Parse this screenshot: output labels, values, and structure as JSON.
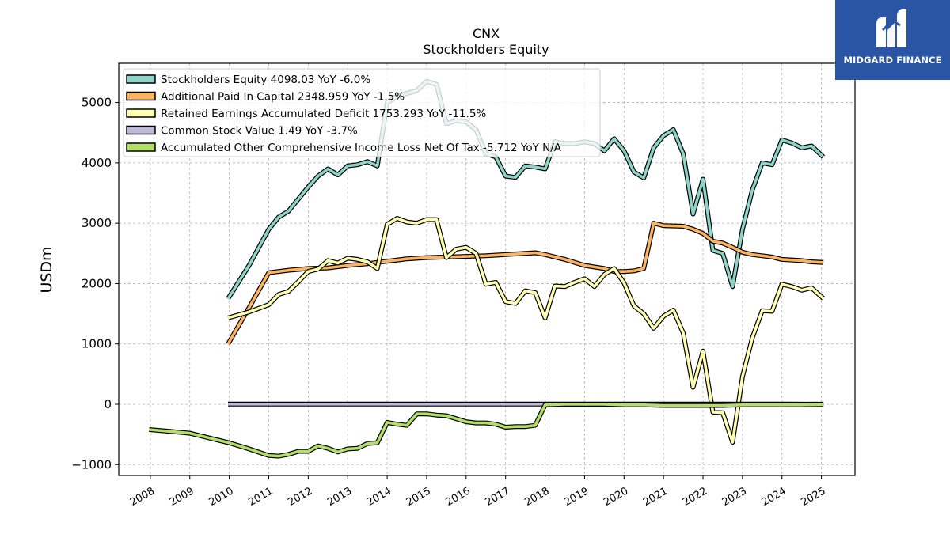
{
  "chart_data": {
    "type": "line",
    "title": "CNX",
    "subtitle": "Stockholders  Equity",
    "ylabel": "USDm",
    "xlabel": "",
    "xlim": [
      2007.2,
      2025.85
    ],
    "ylim": [
      -1180,
      5650
    ],
    "yticks": [
      -1000,
      0,
      1000,
      2000,
      3000,
      4000,
      5000
    ],
    "ytick_labels": [
      "−1000",
      "0",
      "1000",
      "2000",
      "3000",
      "4000",
      "5000"
    ],
    "xticks": [
      2008,
      2009,
      2010,
      2011,
      2012,
      2013,
      2014,
      2015,
      2016,
      2017,
      2018,
      2019,
      2020,
      2021,
      2022,
      2023,
      2024,
      2025
    ],
    "xtick_labels": [
      "2008",
      "2009",
      "2010",
      "2011",
      "2012",
      "2013",
      "2014",
      "2015",
      "2016",
      "2017",
      "2018",
      "2019",
      "2020",
      "2021",
      "2022",
      "2023",
      "2024",
      "2025"
    ],
    "grid": true,
    "legend_position": "top-left",
    "series": [
      {
        "name": "Stockholders Equity  4098.03 YoY -6.0%",
        "color": "#8dd3c7",
        "points": [
          [
            2009.97,
            1750
          ],
          [
            2010.5,
            2300
          ],
          [
            2011.0,
            2900
          ],
          [
            2011.25,
            3100
          ],
          [
            2011.5,
            3200
          ],
          [
            2011.75,
            3400
          ],
          [
            2012.0,
            3600
          ],
          [
            2012.25,
            3780
          ],
          [
            2012.5,
            3900
          ],
          [
            2012.75,
            3800
          ],
          [
            2013.0,
            3950
          ],
          [
            2013.25,
            3970
          ],
          [
            2013.5,
            4020
          ],
          [
            2013.75,
            3950
          ],
          [
            2014.0,
            5000
          ],
          [
            2014.25,
            5100
          ],
          [
            2014.5,
            5150
          ],
          [
            2014.75,
            5200
          ],
          [
            2015.0,
            5350
          ],
          [
            2015.25,
            5300
          ],
          [
            2015.5,
            4650
          ],
          [
            2015.75,
            4700
          ],
          [
            2016.0,
            4680
          ],
          [
            2016.25,
            4550
          ],
          [
            2016.5,
            4150
          ],
          [
            2016.75,
            4100
          ],
          [
            2017.0,
            3780
          ],
          [
            2017.25,
            3760
          ],
          [
            2017.5,
            3950
          ],
          [
            2017.75,
            3930
          ],
          [
            2018.0,
            3900
          ],
          [
            2018.25,
            4350
          ],
          [
            2018.5,
            4320
          ],
          [
            2018.75,
            4320
          ],
          [
            2019.0,
            4350
          ],
          [
            2019.25,
            4320
          ],
          [
            2019.5,
            4200
          ],
          [
            2019.75,
            4400
          ],
          [
            2020.0,
            4200
          ],
          [
            2020.25,
            3850
          ],
          [
            2020.5,
            3750
          ],
          [
            2020.75,
            4250
          ],
          [
            2021.0,
            4450
          ],
          [
            2021.25,
            4550
          ],
          [
            2021.5,
            4150
          ],
          [
            2021.75,
            3150
          ],
          [
            2022.0,
            3730
          ],
          [
            2022.25,
            2550
          ],
          [
            2022.5,
            2500
          ],
          [
            2022.75,
            1950
          ],
          [
            2023.0,
            2900
          ],
          [
            2023.25,
            3550
          ],
          [
            2023.5,
            4000
          ],
          [
            2023.75,
            3970
          ],
          [
            2024.0,
            4380
          ],
          [
            2024.25,
            4330
          ],
          [
            2024.5,
            4250
          ],
          [
            2024.75,
            4280
          ],
          [
            2025.05,
            4098
          ]
        ]
      },
      {
        "name": "Additional Paid In Capital  2348.959 YoY -1.5%",
        "color": "#fdb462",
        "points": [
          [
            2009.97,
            1000
          ],
          [
            2010.5,
            1600
          ],
          [
            2011.0,
            2180
          ],
          [
            2011.5,
            2220
          ],
          [
            2012.0,
            2250
          ],
          [
            2012.5,
            2260
          ],
          [
            2013.0,
            2300
          ],
          [
            2013.5,
            2330
          ],
          [
            2014.0,
            2370
          ],
          [
            2014.5,
            2410
          ],
          [
            2015.0,
            2430
          ],
          [
            2015.5,
            2440
          ],
          [
            2016.0,
            2450
          ],
          [
            2016.5,
            2460
          ],
          [
            2017.0,
            2480
          ],
          [
            2017.5,
            2500
          ],
          [
            2017.75,
            2510
          ],
          [
            2018.0,
            2480
          ],
          [
            2018.5,
            2400
          ],
          [
            2019.0,
            2300
          ],
          [
            2019.5,
            2250
          ],
          [
            2019.75,
            2200
          ],
          [
            2020.0,
            2200
          ],
          [
            2020.25,
            2210
          ],
          [
            2020.5,
            2250
          ],
          [
            2020.75,
            3000
          ],
          [
            2021.0,
            2960
          ],
          [
            2021.5,
            2950
          ],
          [
            2021.75,
            2900
          ],
          [
            2022.0,
            2830
          ],
          [
            2022.25,
            2700
          ],
          [
            2022.5,
            2670
          ],
          [
            2022.75,
            2600
          ],
          [
            2023.0,
            2520
          ],
          [
            2023.25,
            2480
          ],
          [
            2023.5,
            2460
          ],
          [
            2023.75,
            2440
          ],
          [
            2024.0,
            2400
          ],
          [
            2024.5,
            2380
          ],
          [
            2024.75,
            2360
          ],
          [
            2025.05,
            2349
          ]
        ]
      },
      {
        "name": "Retained Earnings Accumulated Deficit  1753.293 YoY -11.5%",
        "color": "#ffffb3",
        "points": [
          [
            2009.97,
            1430
          ],
          [
            2010.5,
            1530
          ],
          [
            2011.0,
            1650
          ],
          [
            2011.25,
            1820
          ],
          [
            2011.5,
            1870
          ],
          [
            2011.75,
            2030
          ],
          [
            2012.0,
            2200
          ],
          [
            2012.25,
            2240
          ],
          [
            2012.5,
            2380
          ],
          [
            2012.75,
            2340
          ],
          [
            2013.0,
            2420
          ],
          [
            2013.25,
            2400
          ],
          [
            2013.5,
            2360
          ],
          [
            2013.75,
            2250
          ],
          [
            2014.0,
            2980
          ],
          [
            2014.25,
            3080
          ],
          [
            2014.5,
            3020
          ],
          [
            2014.75,
            3000
          ],
          [
            2015.0,
            3060
          ],
          [
            2015.25,
            3060
          ],
          [
            2015.5,
            2430
          ],
          [
            2015.75,
            2570
          ],
          [
            2016.0,
            2600
          ],
          [
            2016.25,
            2500
          ],
          [
            2016.5,
            1990
          ],
          [
            2016.75,
            2020
          ],
          [
            2017.0,
            1700
          ],
          [
            2017.25,
            1670
          ],
          [
            2017.5,
            1880
          ],
          [
            2017.75,
            1850
          ],
          [
            2018.0,
            1430
          ],
          [
            2018.25,
            1960
          ],
          [
            2018.5,
            1950
          ],
          [
            2018.75,
            2020
          ],
          [
            2019.0,
            2080
          ],
          [
            2019.25,
            1950
          ],
          [
            2019.5,
            2150
          ],
          [
            2019.75,
            2250
          ],
          [
            2020.0,
            2010
          ],
          [
            2020.25,
            1630
          ],
          [
            2020.5,
            1500
          ],
          [
            2020.75,
            1260
          ],
          [
            2021.0,
            1460
          ],
          [
            2021.25,
            1560
          ],
          [
            2021.5,
            1180
          ],
          [
            2021.75,
            280
          ],
          [
            2022.0,
            880
          ],
          [
            2022.25,
            -130
          ],
          [
            2022.5,
            -140
          ],
          [
            2022.75,
            -630
          ],
          [
            2023.0,
            460
          ],
          [
            2023.25,
            1100
          ],
          [
            2023.5,
            1550
          ],
          [
            2023.75,
            1540
          ],
          [
            2024.0,
            1990
          ],
          [
            2024.25,
            1950
          ],
          [
            2024.5,
            1890
          ],
          [
            2024.75,
            1930
          ],
          [
            2025.05,
            1753
          ]
        ]
      },
      {
        "name": "Common Stock Value  1.49 YoY -3.7%",
        "color": "#bebada",
        "points": [
          [
            2009.97,
            2
          ],
          [
            2012.0,
            2
          ],
          [
            2014.0,
            2
          ],
          [
            2016.0,
            2
          ],
          [
            2018.0,
            2
          ],
          [
            2020.0,
            2
          ],
          [
            2022.0,
            2
          ],
          [
            2024.0,
            2
          ],
          [
            2025.05,
            1.49
          ]
        ]
      },
      {
        "name": "Accumulated Other Comprehensive Income Loss Net Of Tax  -5.712 YoY N/A",
        "color": "#b3de69",
        "points": [
          [
            2007.97,
            -420
          ],
          [
            2008.5,
            -450
          ],
          [
            2009.0,
            -480
          ],
          [
            2009.5,
            -560
          ],
          [
            2010.0,
            -640
          ],
          [
            2010.5,
            -740
          ],
          [
            2011.0,
            -850
          ],
          [
            2011.25,
            -860
          ],
          [
            2011.5,
            -830
          ],
          [
            2011.75,
            -780
          ],
          [
            2012.0,
            -780
          ],
          [
            2012.25,
            -690
          ],
          [
            2012.5,
            -730
          ],
          [
            2012.75,
            -790
          ],
          [
            2013.0,
            -740
          ],
          [
            2013.25,
            -730
          ],
          [
            2013.5,
            -650
          ],
          [
            2013.75,
            -640
          ],
          [
            2014.0,
            -300
          ],
          [
            2014.25,
            -330
          ],
          [
            2014.5,
            -350
          ],
          [
            2014.75,
            -160
          ],
          [
            2015.0,
            -160
          ],
          [
            2015.25,
            -180
          ],
          [
            2015.5,
            -190
          ],
          [
            2015.75,
            -240
          ],
          [
            2016.0,
            -290
          ],
          [
            2016.25,
            -310
          ],
          [
            2016.5,
            -310
          ],
          [
            2016.75,
            -330
          ],
          [
            2017.0,
            -380
          ],
          [
            2017.25,
            -370
          ],
          [
            2017.5,
            -370
          ],
          [
            2017.75,
            -350
          ],
          [
            2018.0,
            -10
          ],
          [
            2018.5,
            0
          ],
          [
            2019.0,
            0
          ],
          [
            2019.5,
            0
          ],
          [
            2020.0,
            -10
          ],
          [
            2020.5,
            -10
          ],
          [
            2021.0,
            -20
          ],
          [
            2021.5,
            -20
          ],
          [
            2022.0,
            -20
          ],
          [
            2022.5,
            -20
          ],
          [
            2023.0,
            -10
          ],
          [
            2023.5,
            -10
          ],
          [
            2024.0,
            -10
          ],
          [
            2024.5,
            -10
          ],
          [
            2025.05,
            -6
          ]
        ]
      }
    ]
  },
  "logo": {
    "text": "MIDGARD FINANCE",
    "color": "#2a55a4"
  }
}
